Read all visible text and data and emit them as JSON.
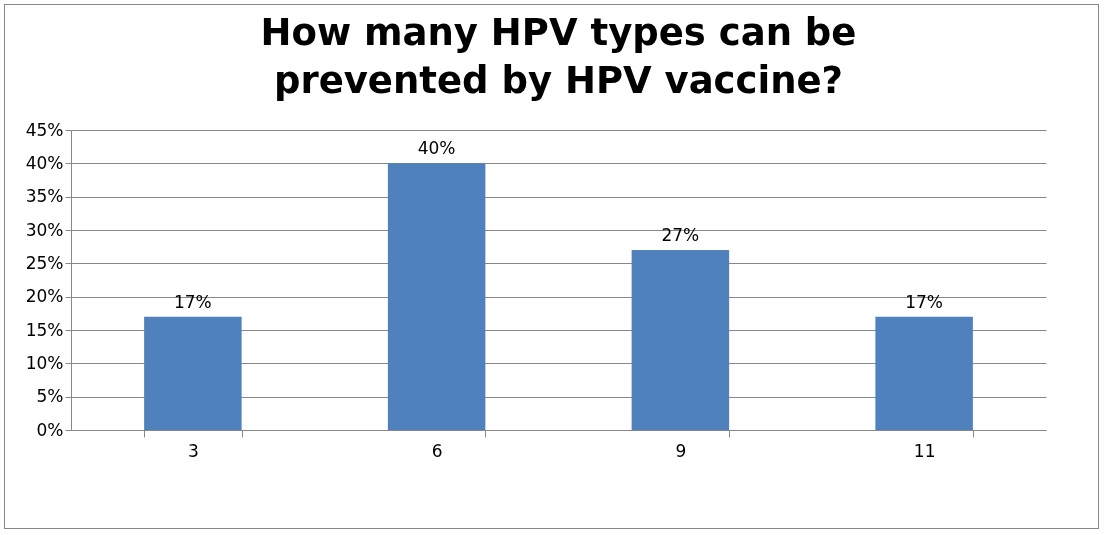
{
  "chart_data": {
    "type": "bar",
    "title": "How many HPV types can be prevented by HPV vaccine?",
    "categories": [
      "3",
      "6",
      "9",
      "11"
    ],
    "values": [
      17,
      40,
      27,
      17
    ],
    "value_labels": [
      "17%",
      "40%",
      "27%",
      "17%"
    ],
    "color": "#4f81bd",
    "ylim": [
      0,
      45
    ],
    "yticks": [
      {
        "value": 0,
        "label": "0%"
      },
      {
        "value": 5,
        "label": "5%"
      },
      {
        "value": 10,
        "label": "10%"
      },
      {
        "value": 15,
        "label": "15%"
      },
      {
        "value": 20,
        "label": "20%"
      },
      {
        "value": 25,
        "label": "25%"
      },
      {
        "value": 30,
        "label": "30%"
      },
      {
        "value": 35,
        "label": "35%"
      },
      {
        "value": 40,
        "label": "40%"
      },
      {
        "value": 45,
        "label": "45%"
      }
    ],
    "grid": "y"
  }
}
